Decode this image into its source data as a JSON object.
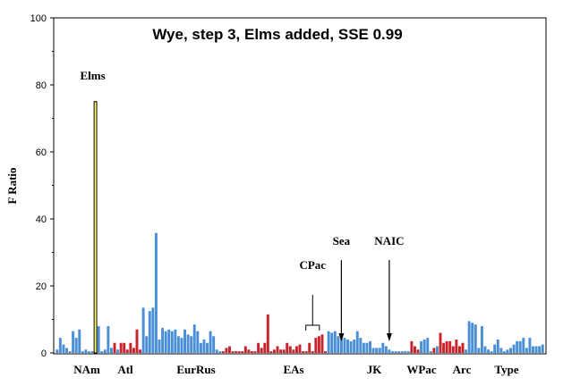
{
  "chart_data": {
    "type": "bar",
    "title": "Wye, step 3, Elms added, SSE 0.99",
    "xlabel": "",
    "ylabel": "F Ratio",
    "ylim": [
      0,
      100
    ],
    "yticks": [
      "0",
      "20",
      "40",
      "60",
      "80",
      "100"
    ],
    "grid": false,
    "legend": "none",
    "colors": {
      "blue": "#4a8fd6",
      "red": "#c8232b",
      "yellow": "#ffff66"
    },
    "regions": [
      "NAm",
      "Atl",
      "EurRus",
      "EAs",
      "JK",
      "WPac",
      "Arc",
      "Type"
    ],
    "annotations": [
      {
        "label": "Elms",
        "target_index": 12
      },
      {
        "label": "CPac",
        "bracket": [
          79,
          81
        ]
      },
      {
        "label": "Sea",
        "target_index": 89
      },
      {
        "label": "NAIC",
        "target_index": 104
      }
    ],
    "values": [
      1.0,
      4.5,
      2.5,
      1.5,
      0.5,
      6.5,
      4.5,
      7.0,
      0.5,
      1.0,
      0.5,
      0.5,
      75.0,
      8.0,
      0.5,
      1.0,
      8.0,
      1.5,
      3.0,
      1.0,
      3.0,
      3.0,
      1.0,
      3.0,
      1.5,
      7.0,
      1.0,
      13.5,
      5.0,
      12.5,
      13.5,
      35.8,
      4.0,
      7.5,
      6.5,
      7.0,
      6.5,
      7.0,
      5.0,
      4.5,
      7.0,
      5.5,
      5.0,
      8.5,
      6.5,
      3.0,
      4.0,
      3.0,
      6.5,
      5.0,
      1.0,
      0.5,
      0.5,
      1.5,
      2.0,
      0.5,
      0.5,
      0.5,
      0.5,
      2.0,
      1.0,
      0.5,
      0.5,
      3.0,
      1.5,
      3.0,
      11.5,
      0.5,
      1.0,
      2.0,
      1.0,
      1.0,
      3.0,
      2.0,
      1.0,
      2.0,
      2.5,
      0.5,
      0.5,
      3.0,
      0.5,
      4.5,
      5.0,
      5.5,
      0.5,
      6.5,
      6.0,
      6.5,
      5.0,
      4.5,
      4.5,
      4.0,
      3.5,
      4.0,
      6.5,
      4.5,
      3.0,
      3.0,
      3.5,
      1.5,
      1.5,
      1.5,
      3.0,
      2.0,
      1.0,
      0.5,
      0.5,
      0.5,
      0.5,
      0.5,
      0.5,
      3.5,
      2.0,
      1.0,
      3.5,
      4.0,
      4.5,
      0.5,
      1.5,
      2.0,
      6.0,
      3.0,
      3.5,
      3.5,
      2.0,
      4.0,
      2.0,
      3.0,
      1.0,
      9.5,
      9.0,
      8.5,
      1.5,
      8.0,
      2.0,
      1.0,
      0.5,
      2.5,
      4.0,
      1.5,
      0.5,
      1.0,
      1.5,
      2.5,
      3.5,
      3.5,
      4.5,
      1.5,
      4.5,
      2.0,
      2.0,
      2.0,
      2.5
    ],
    "series_colors": [
      "b",
      "b",
      "b",
      "b",
      "b",
      "b",
      "b",
      "b",
      "b",
      "b",
      "b",
      "b",
      "y",
      "b",
      "b",
      "b",
      "b",
      "b",
      "r",
      "b",
      "r",
      "r",
      "r",
      "r",
      "r",
      "r",
      "r",
      "b",
      "b",
      "b",
      "b",
      "b",
      "b",
      "b",
      "b",
      "b",
      "b",
      "b",
      "b",
      "b",
      "b",
      "b",
      "b",
      "b",
      "b",
      "b",
      "b",
      "b",
      "b",
      "b",
      "b",
      "b",
      "r",
      "r",
      "r",
      "r",
      "r",
      "r",
      "r",
      "r",
      "r",
      "r",
      "r",
      "r",
      "r",
      "r",
      "r",
      "r",
      "r",
      "r",
      "r",
      "r",
      "r",
      "r",
      "r",
      "r",
      "r",
      "r",
      "r",
      "r",
      "r",
      "r",
      "r",
      "r",
      "r",
      "b",
      "b",
      "b",
      "b",
      "b",
      "b",
      "b",
      "b",
      "b",
      "b",
      "b",
      "b",
      "b",
      "b",
      "b",
      "b",
      "b",
      "b",
      "b",
      "b",
      "b",
      "b",
      "b",
      "b",
      "b",
      "b",
      "r",
      "r",
      "r",
      "b",
      "b",
      "b",
      "b",
      "r",
      "b",
      "r",
      "r",
      "r",
      "r",
      "r",
      "r",
      "r",
      "r",
      "b",
      "b",
      "b",
      "b",
      "b",
      "b",
      "b",
      "b",
      "b",
      "b",
      "b",
      "b",
      "b",
      "b",
      "b",
      "b",
      "b",
      "b",
      "b",
      "b",
      "b",
      "b",
      "b",
      "b",
      "b"
    ]
  }
}
